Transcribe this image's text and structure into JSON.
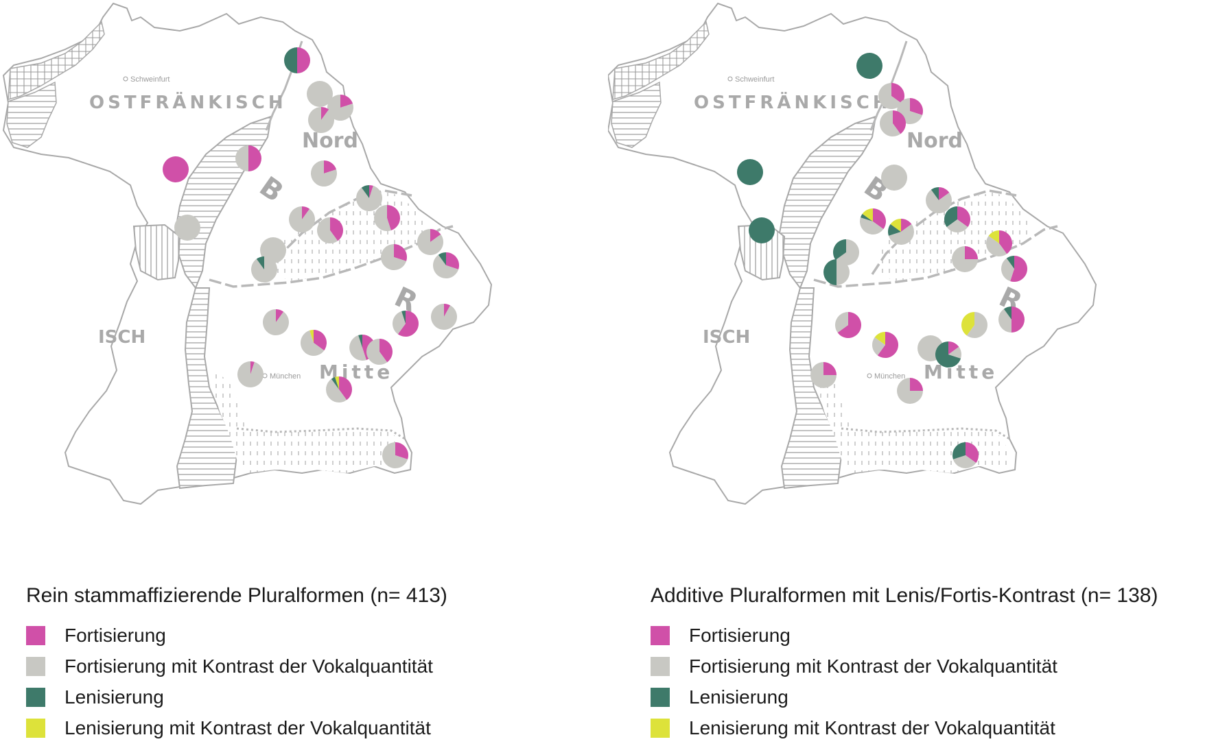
{
  "colors": {
    "fortisierung": "#d050a8",
    "fortisierung_kontrast": "#c8c8c3",
    "lenisierung": "#3e7a6a",
    "lenisierung_kontrast": "#dde23a",
    "boundary": "#b8b8b8",
    "outline": "#a8a8a8"
  },
  "categories": [
    "Fortisierung",
    "Fortisierung mit Kontrast der Vokalquantität",
    "Lenisierung",
    "Lenisierung mit Kontrast der Vokalquantität"
  ],
  "base_map": {
    "region_labels": [
      "OSTFRÄNKISCH",
      "Nord",
      "B",
      "R",
      "Mitte",
      "ISCH"
    ],
    "city_labels": [
      "Schweinfurt",
      "München"
    ]
  },
  "maps": [
    {
      "title": "Rein stammaffizierende Pluralformen (n= 413)",
      "pies": [
        {
          "shares": [
            50,
            0,
            50,
            0
          ]
        },
        {
          "shares": [
            0,
            100,
            0,
            0
          ]
        },
        {
          "shares": [
            20,
            80,
            0,
            0
          ]
        },
        {
          "shares": [
            10,
            90,
            0,
            0
          ]
        },
        {
          "shares": [
            100,
            0,
            0,
            0
          ]
        },
        {
          "shares": [
            50,
            50,
            0,
            0
          ]
        },
        {
          "shares": [
            20,
            80,
            0,
            0
          ]
        },
        {
          "shares": [
            0,
            100,
            0,
            0
          ]
        },
        {
          "shares": [
            5,
            85,
            10,
            0
          ]
        },
        {
          "shares": [
            10,
            90,
            0,
            0
          ]
        },
        {
          "shares": [
            40,
            60,
            0,
            0
          ]
        },
        {
          "shares": [
            45,
            55,
            0,
            0
          ]
        },
        {
          "shares": [
            0,
            100,
            0,
            0
          ]
        },
        {
          "shares": [
            15,
            85,
            0,
            0
          ]
        },
        {
          "shares": [
            0,
            90,
            10,
            0
          ]
        },
        {
          "shares": [
            30,
            70,
            0,
            0
          ]
        },
        {
          "shares": [
            30,
            60,
            10,
            0
          ]
        },
        {
          "shares": [
            10,
            90,
            0,
            0
          ]
        },
        {
          "shares": [
            60,
            35,
            5,
            0
          ]
        },
        {
          "shares": [
            8,
            92,
            0,
            0
          ]
        },
        {
          "shares": [
            35,
            60,
            0,
            5
          ]
        },
        {
          "shares": [
            45,
            50,
            5,
            0
          ]
        },
        {
          "shares": [
            40,
            60,
            0,
            0
          ]
        },
        {
          "shares": [
            5,
            95,
            0,
            0
          ]
        },
        {
          "shares": [
            40,
            50,
            5,
            5
          ]
        },
        {
          "shares": [
            30,
            70,
            0,
            0
          ]
        }
      ]
    },
    {
      "title": "Additive Pluralformen mit Lenis/Fortis-Kontrast (n= 138)",
      "pies": [
        {
          "shares": [
            0,
            0,
            100,
            0
          ]
        },
        {
          "shares": [
            35,
            65,
            0,
            0
          ]
        },
        {
          "shares": [
            30,
            70,
            0,
            0
          ]
        },
        {
          "shares": [
            40,
            60,
            0,
            0
          ]
        },
        {
          "shares": [
            0,
            0,
            100,
            0
          ]
        },
        {
          "shares": [
            0,
            100,
            0,
            0
          ]
        },
        {
          "shares": [
            0,
            0,
            100,
            0
          ]
        },
        {
          "shares": [
            15,
            75,
            10,
            0
          ]
        },
        {
          "shares": [
            35,
            45,
            5,
            15
          ]
        },
        {
          "shares": [
            15,
            55,
            15,
            15
          ]
        },
        {
          "shares": [
            35,
            30,
            35,
            0
          ]
        },
        {
          "shares": [
            0,
            65,
            35,
            0
          ]
        },
        {
          "shares": [
            0,
            50,
            50,
            0
          ]
        },
        {
          "shares": [
            40,
            45,
            0,
            15
          ]
        },
        {
          "shares": [
            25,
            75,
            0,
            0
          ]
        },
        {
          "shares": [
            55,
            35,
            10,
            0
          ]
        },
        {
          "shares": [
            0,
            60,
            0,
            40
          ]
        },
        {
          "shares": [
            50,
            40,
            10,
            0
          ]
        },
        {
          "shares": [
            65,
            35,
            0,
            0
          ]
        },
        {
          "shares": [
            60,
            25,
            0,
            15
          ]
        },
        {
          "shares": [
            0,
            100,
            0,
            0
          ]
        },
        {
          "shares": [
            15,
            15,
            70,
            0
          ]
        },
        {
          "shares": [
            25,
            75,
            0,
            0
          ]
        },
        {
          "shares": [
            25,
            75,
            0,
            0
          ]
        },
        {
          "shares": [
            35,
            35,
            30,
            0
          ]
        }
      ]
    }
  ]
}
